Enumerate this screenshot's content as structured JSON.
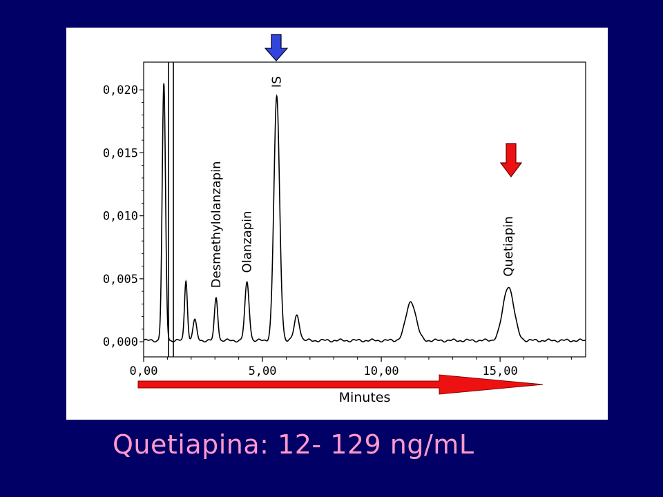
{
  "caption": "Quetiapina: 12- 129 ng/mL",
  "colors": {
    "background": "#000066",
    "panel": "#ffffff",
    "caption": "#ff99cc",
    "trace": "#000000",
    "is_arrow": "#3344dd",
    "analyte_arrow": "#ee1111",
    "time_arrow": "#ee1111"
  },
  "icons": {
    "is_marker": "down-arrow-icon",
    "quetiapin_marker": "down-arrow-icon",
    "time_direction": "right-arrow-icon"
  },
  "chart_data": {
    "type": "line",
    "title": "",
    "xlabel": "Minutes",
    "ylabel": "",
    "xlim": [
      0,
      18.6
    ],
    "ylim": [
      -0.0012,
      0.0222
    ],
    "x_ticks": [
      "0,00",
      "5,00",
      "10,00",
      "15,00"
    ],
    "x_tick_values": [
      0,
      5,
      10,
      15
    ],
    "y_ticks": [
      "0,000",
      "0,005",
      "0,010",
      "0,015",
      "0,020"
    ],
    "y_tick_values": [
      0,
      0.005,
      0.01,
      0.015,
      0.02
    ],
    "grid": false,
    "baseline": 0.0001,
    "peaks": [
      {
        "label": "",
        "rt": 0.85,
        "height": 0.0203,
        "width": 0.07
      },
      {
        "label": "",
        "rt": 1.78,
        "height": 0.0048,
        "width": 0.06
      },
      {
        "label": "",
        "rt": 2.15,
        "height": 0.0016,
        "width": 0.08
      },
      {
        "label": "Desmethylolanzapin",
        "rt": 3.05,
        "height": 0.0034,
        "width": 0.07
      },
      {
        "label": "Olanzapin",
        "rt": 4.35,
        "height": 0.0046,
        "width": 0.09
      },
      {
        "label": "IS",
        "rt": 5.6,
        "height": 0.0193,
        "width": 0.12
      },
      {
        "label": "",
        "rt": 6.45,
        "height": 0.002,
        "width": 0.11
      },
      {
        "label": "",
        "rt": 11.25,
        "height": 0.0031,
        "width": 0.21
      },
      {
        "label": "Quetiapin",
        "rt": 15.35,
        "height": 0.0043,
        "width": 0.23
      }
    ],
    "vertical_lines": [
      1.05,
      1.25
    ]
  }
}
